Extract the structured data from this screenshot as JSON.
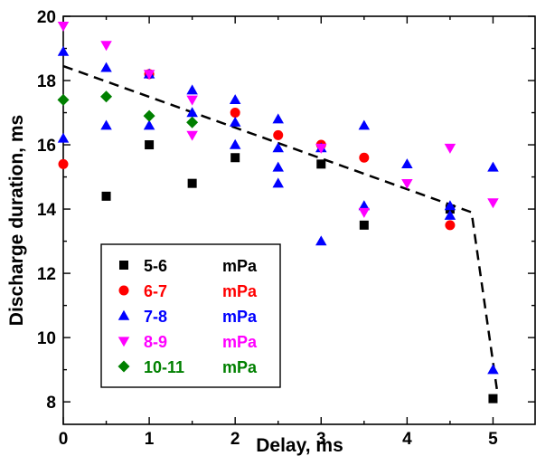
{
  "chart_data": {
    "type": "scatter",
    "xlabel": "Delay, ms",
    "ylabel": "Discharge duration, ms",
    "xlim": [
      0,
      5.5
    ],
    "ylim": [
      7.3,
      20
    ],
    "xticks": [
      0,
      1,
      2,
      3,
      4,
      5
    ],
    "yticks": [
      8,
      10,
      12,
      14,
      16,
      18,
      20
    ],
    "legend_position": "bottom-left",
    "series": [
      {
        "name": "5-6",
        "unit": "mPa",
        "marker": "square",
        "color": "#000000",
        "points": [
          [
            0.5,
            14.4
          ],
          [
            1.0,
            16.0
          ],
          [
            1.5,
            14.8
          ],
          [
            2.0,
            15.6
          ],
          [
            3.0,
            15.4
          ],
          [
            3.5,
            13.5
          ],
          [
            4.5,
            14.0
          ],
          [
            5.0,
            8.1
          ]
        ]
      },
      {
        "name": "6-7",
        "unit": "mPa",
        "marker": "circle",
        "color": "#ff0000",
        "points": [
          [
            0.0,
            15.4
          ],
          [
            1.0,
            18.2
          ],
          [
            2.0,
            17.0
          ],
          [
            2.5,
            16.3
          ],
          [
            3.0,
            16.0
          ],
          [
            3.5,
            15.6
          ],
          [
            4.5,
            13.5
          ]
        ]
      },
      {
        "name": "7-8",
        "unit": "mPa",
        "marker": "triangle-up",
        "color": "#0000ff",
        "points": [
          [
            0.0,
            18.9
          ],
          [
            0.0,
            16.2
          ],
          [
            0.5,
            18.4
          ],
          [
            0.5,
            16.6
          ],
          [
            1.0,
            18.2
          ],
          [
            1.0,
            16.6
          ],
          [
            1.5,
            17.7
          ],
          [
            1.5,
            17.0
          ],
          [
            2.0,
            17.4
          ],
          [
            2.0,
            16.7
          ],
          [
            2.0,
            16.0
          ],
          [
            2.5,
            16.8
          ],
          [
            2.5,
            15.9
          ],
          [
            2.5,
            15.3
          ],
          [
            2.5,
            14.8
          ],
          [
            3.0,
            15.9
          ],
          [
            3.0,
            13.0
          ],
          [
            3.5,
            16.6
          ],
          [
            3.5,
            14.1
          ],
          [
            4.0,
            15.4
          ],
          [
            4.5,
            14.1
          ],
          [
            4.5,
            13.8
          ],
          [
            5.0,
            15.3
          ],
          [
            5.0,
            9.0
          ]
        ]
      },
      {
        "name": "8-9",
        "unit": "mPa",
        "marker": "triangle-down",
        "color": "#ff00ff",
        "points": [
          [
            0.0,
            19.7
          ],
          [
            0.5,
            19.1
          ],
          [
            1.0,
            18.2
          ],
          [
            1.5,
            17.4
          ],
          [
            1.5,
            16.3
          ],
          [
            3.0,
            15.9
          ],
          [
            3.5,
            13.9
          ],
          [
            4.0,
            14.8
          ],
          [
            4.5,
            15.9
          ],
          [
            5.0,
            14.2
          ]
        ]
      },
      {
        "name": "10-11",
        "unit": "mPa",
        "marker": "diamond",
        "color": "#008000",
        "points": [
          [
            0.0,
            17.4
          ],
          [
            0.5,
            17.5
          ],
          [
            1.0,
            16.9
          ],
          [
            1.5,
            16.7
          ]
        ]
      }
    ],
    "trend_line": {
      "style": "dashed",
      "color": "#000000",
      "points": [
        [
          0.0,
          18.45
        ],
        [
          4.75,
          13.9
        ],
        [
          5.05,
          8.3
        ]
      ]
    }
  }
}
